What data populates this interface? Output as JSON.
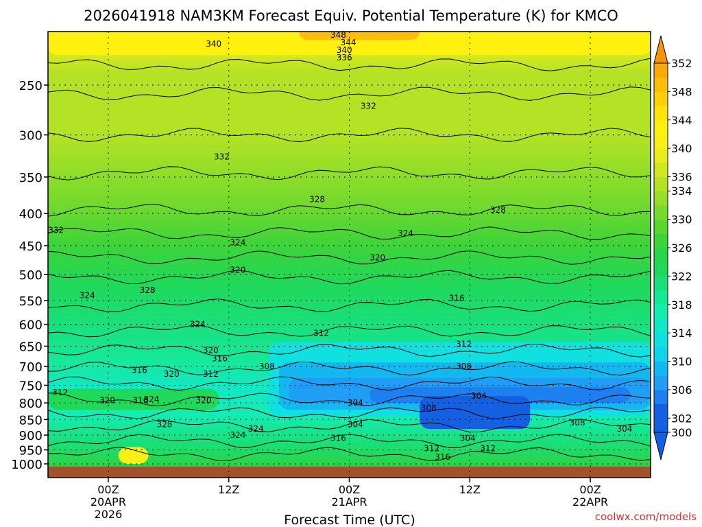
{
  "chart_data": {
    "type": "heatmap",
    "title": "2026041918 NAM3KM Forecast Equiv. Potential Temperature (K) for KMCO",
    "xlabel": "Forecast Time (UTC)",
    "ylabel": "",
    "credit": "coolwx.com/models",
    "x_range_hours": [
      -6,
      54
    ],
    "x_ticks": [
      {
        "hour": 0,
        "label": "00Z",
        "sub": [
          "20APR",
          "2026"
        ]
      },
      {
        "hour": 12,
        "label": "12Z",
        "sub": []
      },
      {
        "hour": 24,
        "label": "00Z",
        "sub": [
          "21APR"
        ]
      },
      {
        "hour": 36,
        "label": "12Z",
        "sub": []
      },
      {
        "hour": 48,
        "label": "00Z",
        "sub": [
          "22APR"
        ]
      }
    ],
    "y_scale": "log-pressure",
    "y_range_hpa": [
      1030,
      200
    ],
    "y_ticks": [
      250,
      300,
      350,
      400,
      450,
      500,
      550,
      600,
      650,
      700,
      750,
      800,
      850,
      900,
      950,
      1000
    ],
    "grid": true,
    "colorbar": {
      "levels": [
        300,
        302,
        304,
        306,
        308,
        310,
        312,
        314,
        316,
        318,
        320,
        322,
        324,
        326,
        328,
        330,
        332,
        334,
        336,
        338,
        340,
        342,
        344,
        346,
        348,
        350,
        352
      ],
      "labels": [
        300,
        302,
        306,
        310,
        314,
        318,
        322,
        326,
        330,
        334,
        336,
        340,
        344,
        348,
        352
      ]
    },
    "contour_labels": [
      {
        "value": "348",
        "hour": 22.9,
        "hpa": 208
      },
      {
        "value": "344",
        "hour": 23.9,
        "hpa": 214
      },
      {
        "value": "340",
        "hour": 23.5,
        "hpa": 220
      },
      {
        "value": "336",
        "hour": 23.5,
        "hpa": 226
      },
      {
        "value": "340",
        "hour": 10.5,
        "hpa": 215
      },
      {
        "value": "332",
        "hour": 25.9,
        "hpa": 270
      },
      {
        "value": "332",
        "hour": 11.3,
        "hpa": 325
      },
      {
        "value": "328",
        "hour": 20.8,
        "hpa": 380
      },
      {
        "value": "328",
        "hour": 38.8,
        "hpa": 395
      },
      {
        "value": "332",
        "hour": -5.2,
        "hpa": 425
      },
      {
        "value": "324",
        "hour": 29.6,
        "hpa": 430
      },
      {
        "value": "324",
        "hour": 12.9,
        "hpa": 445
      },
      {
        "value": "320",
        "hour": 12.9,
        "hpa": 492
      },
      {
        "value": "320",
        "hour": 26.8,
        "hpa": 470
      },
      {
        "value": "324",
        "hour": -2.1,
        "hpa": 540
      },
      {
        "value": "328",
        "hour": 3.9,
        "hpa": 530
      },
      {
        "value": "316",
        "hour": 34.7,
        "hpa": 545
      },
      {
        "value": "324",
        "hour": 8.9,
        "hpa": 600
      },
      {
        "value": "312",
        "hour": 21.2,
        "hpa": 620
      },
      {
        "value": "312",
        "hour": 35.4,
        "hpa": 645
      },
      {
        "value": "320",
        "hour": 10.2,
        "hpa": 660
      },
      {
        "value": "316",
        "hour": 11.1,
        "hpa": 680
      },
      {
        "value": "308",
        "hour": 15.8,
        "hpa": 700
      },
      {
        "value": "308",
        "hour": 35.4,
        "hpa": 700
      },
      {
        "value": "316",
        "hour": 3.1,
        "hpa": 710
      },
      {
        "value": "320",
        "hour": 6.3,
        "hpa": 720
      },
      {
        "value": "312",
        "hour": 10.2,
        "hpa": 720
      },
      {
        "value": "312",
        "hour": -4.8,
        "hpa": 770
      },
      {
        "value": "304",
        "hour": 36.9,
        "hpa": 780
      },
      {
        "value": "320",
        "hour": -0.1,
        "hpa": 793
      },
      {
        "value": "316",
        "hour": 3.2,
        "hpa": 793
      },
      {
        "value": "324",
        "hour": 4.3,
        "hpa": 790
      },
      {
        "value": "320",
        "hour": 9.5,
        "hpa": 793
      },
      {
        "value": "304",
        "hour": 24.6,
        "hpa": 800
      },
      {
        "value": "308",
        "hour": 31.9,
        "hpa": 815
      },
      {
        "value": "328",
        "hour": 5.6,
        "hpa": 865
      },
      {
        "value": "324",
        "hour": 14.7,
        "hpa": 880
      },
      {
        "value": "304",
        "hour": 24.6,
        "hpa": 865
      },
      {
        "value": "308",
        "hour": 46.7,
        "hpa": 860
      },
      {
        "value": "304",
        "hour": 51.4,
        "hpa": 880
      },
      {
        "value": "324",
        "hour": 12.9,
        "hpa": 900
      },
      {
        "value": "316",
        "hour": 22.9,
        "hpa": 910
      },
      {
        "value": "304",
        "hour": 35.8,
        "hpa": 910
      },
      {
        "value": "312",
        "hour": 32.2,
        "hpa": 945
      },
      {
        "value": "312",
        "hour": 37.8,
        "hpa": 945
      },
      {
        "value": "316",
        "hour": 33.3,
        "hpa": 975
      }
    ]
  }
}
